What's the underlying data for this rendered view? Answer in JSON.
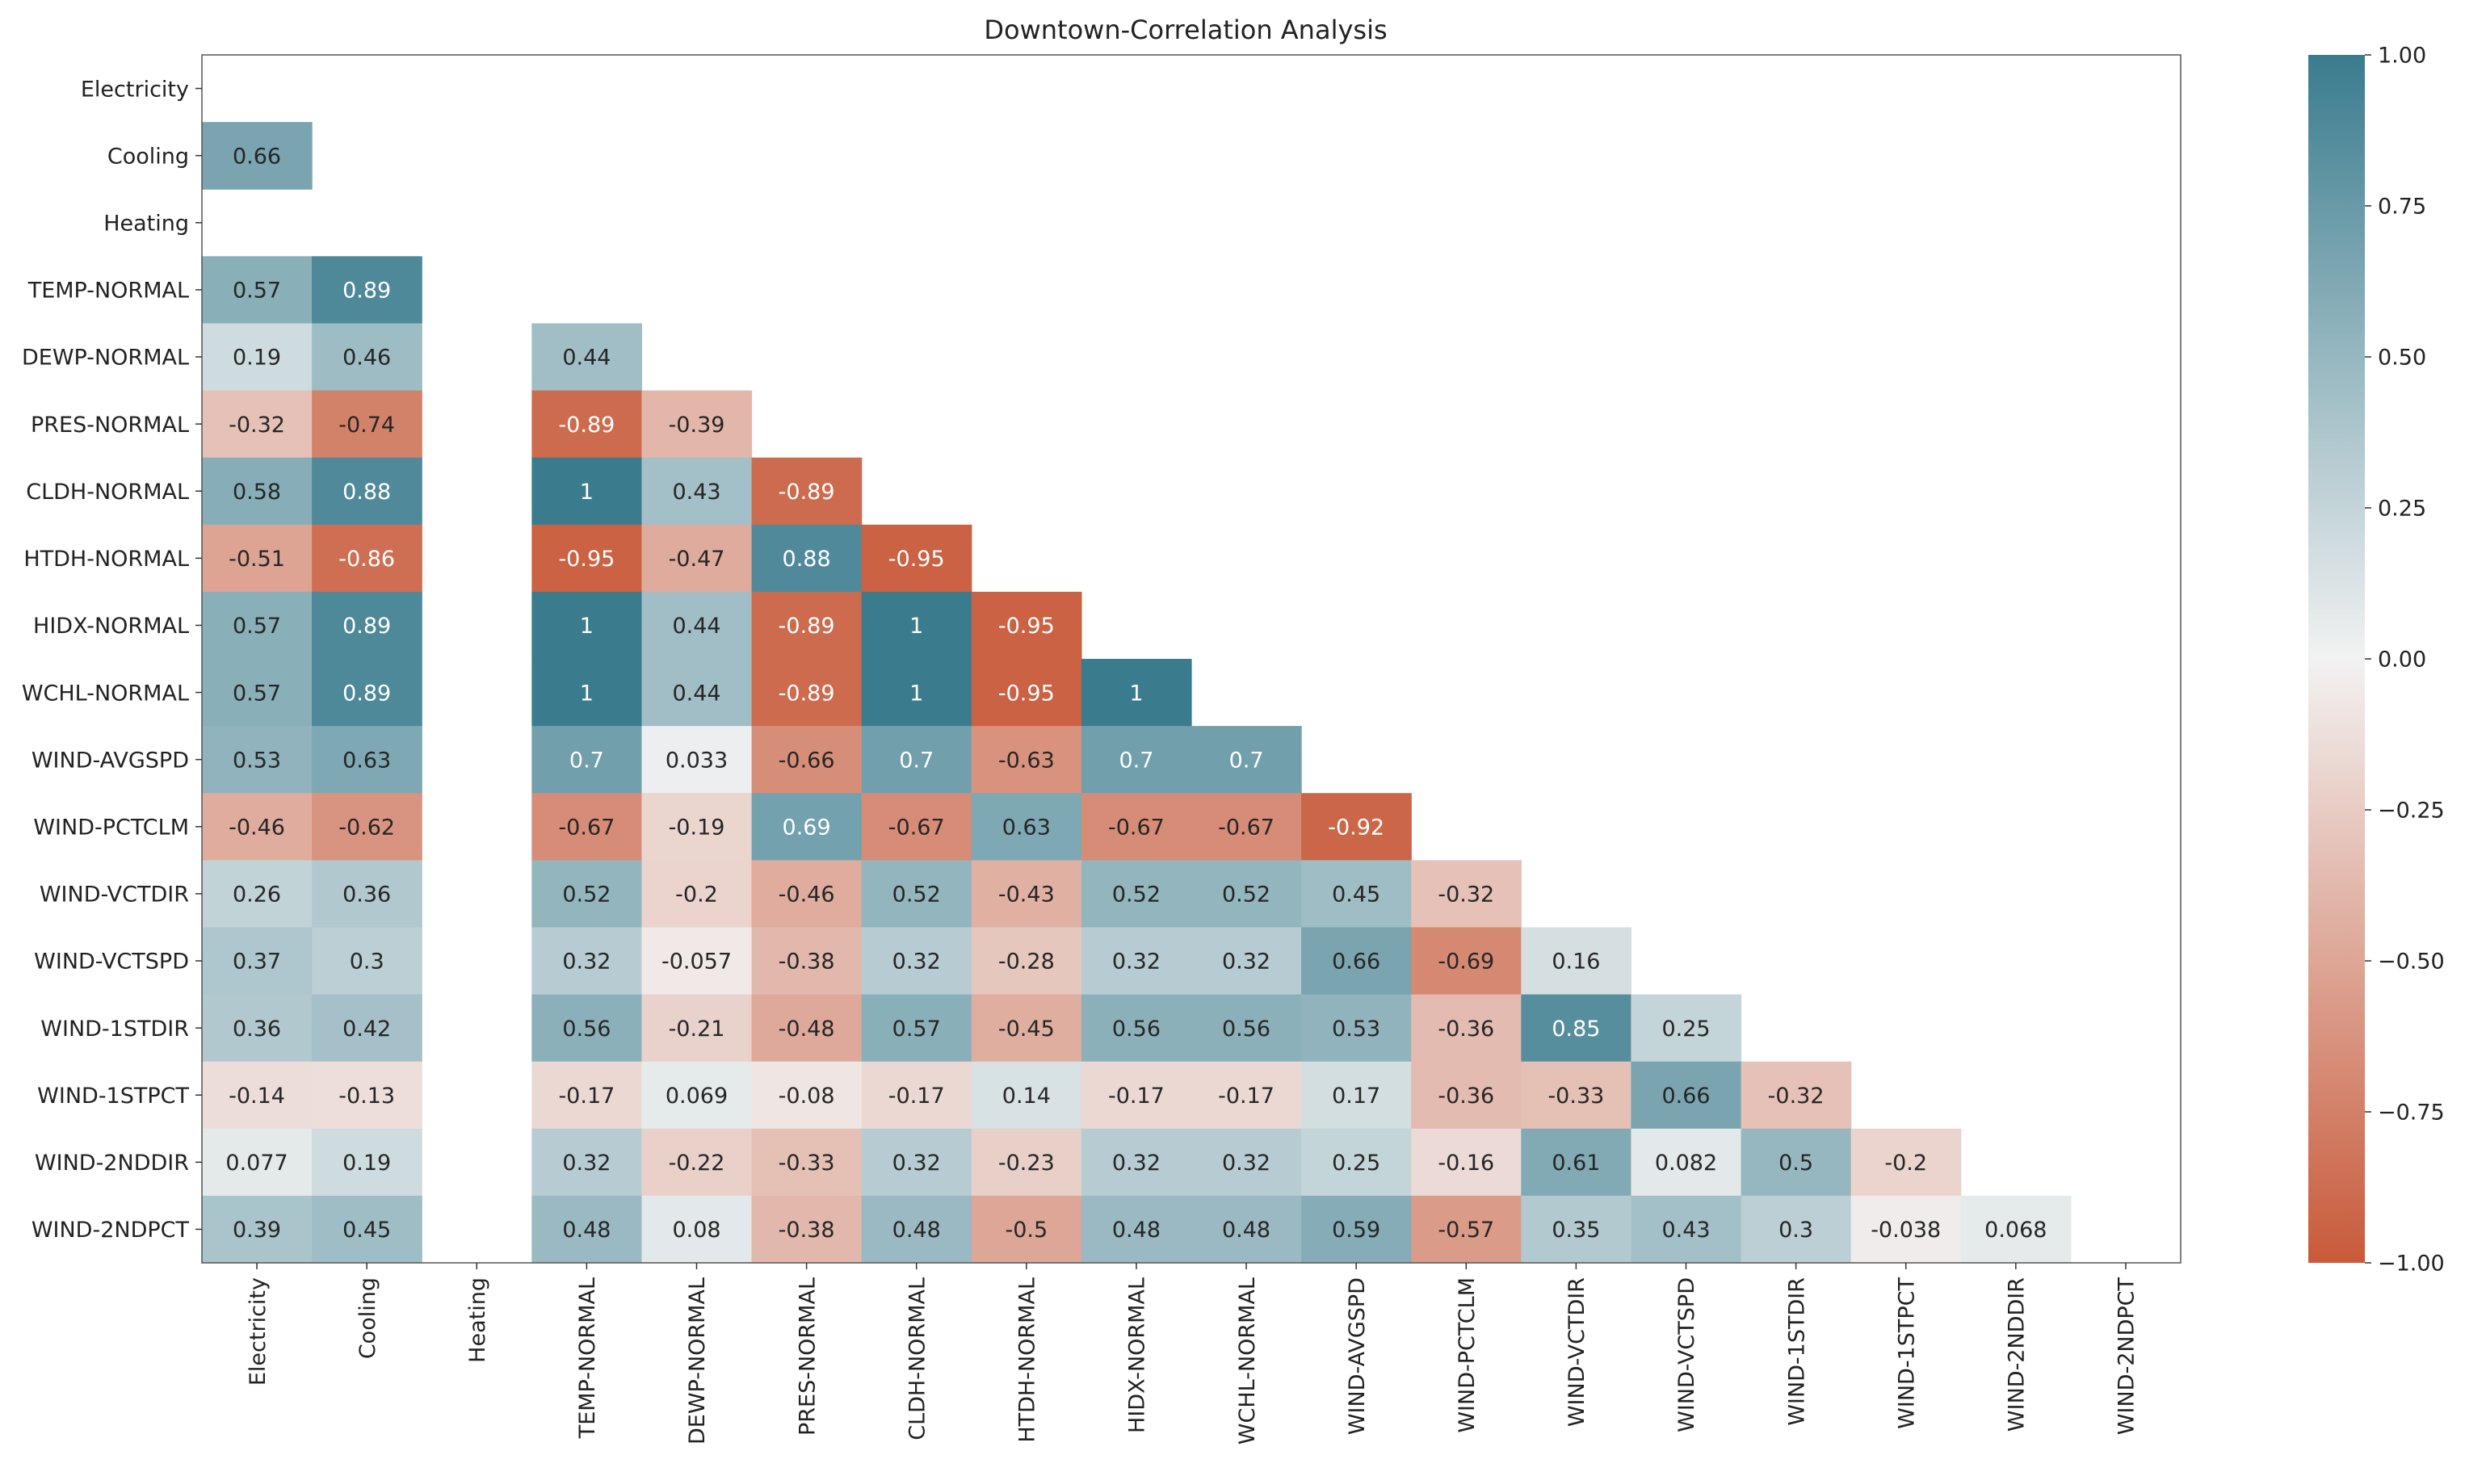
{
  "chart_data": {
    "type": "heatmap",
    "title": "Downtown-Correlation Analysis",
    "xlabel": "",
    "ylabel": "",
    "variables": [
      "Electricity",
      "Cooling",
      "Heating",
      "TEMP-NORMAL",
      "DEWP-NORMAL",
      "PRES-NORMAL",
      "CLDH-NORMAL",
      "HTDH-NORMAL",
      "HIDX-NORMAL",
      "WCHL-NORMAL",
      "WIND-AVGSPD",
      "WIND-PCTCLM",
      "WIND-VCTDIR",
      "WIND-VCTSPD",
      "WIND-1STDIR",
      "WIND-1STPCT",
      "WIND-2NDDIR",
      "WIND-2NDPCT"
    ],
    "row_labels": [
      "Electricity",
      "Cooling",
      "Heating",
      "TEMP-NORMAL",
      "DEWP-NORMAL",
      "PRES-NORMAL",
      "CLDH-NORMAL",
      "HTDH-NORMAL",
      "HIDX-NORMAL",
      "WCHL-NORMAL",
      "WIND-AVGSPD",
      "WIND-PCTCLM",
      "WIND-VCTDIR",
      "WIND-VCTSPD",
      "WIND-1STDIR",
      "WIND-1STPCT",
      "WIND-2NDDIR",
      "WIND-2NDPCT"
    ],
    "col_labels": [
      "Electricity",
      "Cooling",
      "Heating",
      "TEMP-NORMAL",
      "DEWP-NORMAL",
      "PRES-NORMAL",
      "CLDH-NORMAL",
      "HTDH-NORMAL",
      "HIDX-NORMAL",
      "WCHL-NORMAL",
      "WIND-AVGSPD",
      "WIND-PCTCLM",
      "WIND-VCTDIR",
      "WIND-VCTSPD",
      "WIND-1STDIR",
      "WIND-1STPCT",
      "WIND-2NDDIR",
      "WIND-2NDPCT"
    ],
    "mask": "upper-triangle",
    "matrix": [
      [
        null,
        null,
        null,
        null,
        null,
        null,
        null,
        null,
        null,
        null,
        null,
        null,
        null,
        null,
        null,
        null,
        null,
        null
      ],
      [
        0.66,
        null,
        null,
        null,
        null,
        null,
        null,
        null,
        null,
        null,
        null,
        null,
        null,
        null,
        null,
        null,
        null,
        null
      ],
      [
        null,
        null,
        null,
        null,
        null,
        null,
        null,
        null,
        null,
        null,
        null,
        null,
        null,
        null,
        null,
        null,
        null,
        null
      ],
      [
        0.57,
        0.89,
        null,
        null,
        null,
        null,
        null,
        null,
        null,
        null,
        null,
        null,
        null,
        null,
        null,
        null,
        null,
        null
      ],
      [
        0.19,
        0.46,
        null,
        0.44,
        null,
        null,
        null,
        null,
        null,
        null,
        null,
        null,
        null,
        null,
        null,
        null,
        null,
        null
      ],
      [
        -0.32,
        -0.74,
        null,
        -0.89,
        -0.39,
        null,
        null,
        null,
        null,
        null,
        null,
        null,
        null,
        null,
        null,
        null,
        null,
        null
      ],
      [
        0.58,
        0.88,
        null,
        1,
        0.43,
        -0.89,
        null,
        null,
        null,
        null,
        null,
        null,
        null,
        null,
        null,
        null,
        null,
        null
      ],
      [
        -0.51,
        -0.86,
        null,
        -0.95,
        -0.47,
        0.88,
        -0.95,
        null,
        null,
        null,
        null,
        null,
        null,
        null,
        null,
        null,
        null,
        null
      ],
      [
        0.57,
        0.89,
        null,
        1,
        0.44,
        -0.89,
        1,
        -0.95,
        null,
        null,
        null,
        null,
        null,
        null,
        null,
        null,
        null,
        null
      ],
      [
        0.57,
        0.89,
        null,
        1,
        0.44,
        -0.89,
        1,
        -0.95,
        1,
        null,
        null,
        null,
        null,
        null,
        null,
        null,
        null,
        null
      ],
      [
        0.53,
        0.63,
        null,
        0.7,
        0.033,
        -0.66,
        0.7,
        -0.63,
        0.7,
        0.7,
        null,
        null,
        null,
        null,
        null,
        null,
        null,
        null
      ],
      [
        -0.46,
        -0.62,
        null,
        -0.67,
        -0.19,
        0.69,
        -0.67,
        0.63,
        -0.67,
        -0.67,
        -0.92,
        null,
        null,
        null,
        null,
        null,
        null,
        null
      ],
      [
        0.26,
        0.36,
        null,
        0.52,
        -0.2,
        -0.46,
        0.52,
        -0.43,
        0.52,
        0.52,
        0.45,
        -0.32,
        null,
        null,
        null,
        null,
        null,
        null
      ],
      [
        0.37,
        0.3,
        null,
        0.32,
        -0.057,
        -0.38,
        0.32,
        -0.28,
        0.32,
        0.32,
        0.66,
        -0.69,
        0.16,
        null,
        null,
        null,
        null,
        null
      ],
      [
        0.36,
        0.42,
        null,
        0.56,
        -0.21,
        -0.48,
        0.57,
        -0.45,
        0.56,
        0.56,
        0.53,
        -0.36,
        0.85,
        0.25,
        null,
        null,
        null,
        null
      ],
      [
        -0.14,
        -0.13,
        null,
        -0.17,
        0.069,
        -0.08,
        -0.17,
        0.14,
        -0.17,
        -0.17,
        0.17,
        -0.36,
        -0.33,
        0.66,
        -0.32,
        null,
        null,
        null
      ],
      [
        0.077,
        0.19,
        null,
        0.32,
        -0.22,
        -0.33,
        0.32,
        -0.23,
        0.32,
        0.32,
        0.25,
        -0.16,
        0.61,
        0.082,
        0.5,
        -0.2,
        null,
        null
      ],
      [
        0.39,
        0.45,
        null,
        0.48,
        0.08,
        -0.38,
        0.48,
        -0.5,
        0.48,
        0.48,
        0.59,
        -0.57,
        0.35,
        0.43,
        0.3,
        -0.038,
        0.068,
        null
      ]
    ],
    "colorbar": {
      "vmin": -1.0,
      "vmax": 1.0,
      "ticks": [
        1.0,
        0.75,
        0.5,
        0.25,
        0.0,
        -0.25,
        -0.5,
        -0.75,
        -1.0
      ],
      "tick_labels": [
        "1.00",
        "0.75",
        "0.50",
        "0.25",
        "0.00",
        "−0.25",
        "−0.50",
        "−0.75",
        "−1.00"
      ],
      "colors": {
        "negative": "#c85a3a",
        "center": "#f2f2f2",
        "positive": "#3a7c8e"
      }
    }
  }
}
